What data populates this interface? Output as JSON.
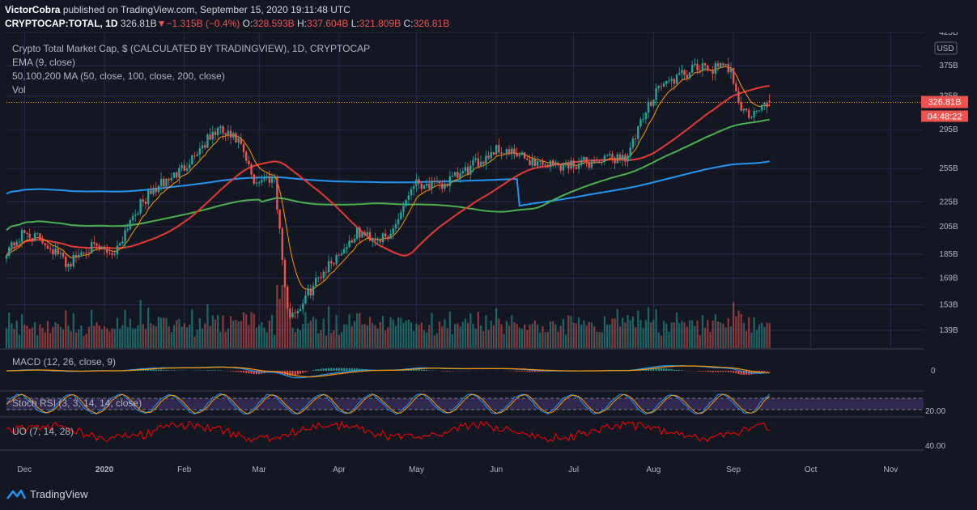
{
  "header": {
    "author": "VictorCobra",
    "published_text": "published on TradingView.com, September 15, 2020 19:11:48 UTC",
    "symbol": "CRYPTOCAP:TOTAL, 1D",
    "last": "326.81B",
    "change": "−1.315B (−0.4%)",
    "open_label": "O:",
    "open": "328.593B",
    "high_label": "H:",
    "high": "337.604B",
    "low_label": "L:",
    "low": "321.809B",
    "close_label": "C:",
    "close": "326.81B"
  },
  "legend": {
    "title": "Crypto Total Market Cap, $ (CALCULATED BY TRADINGVIEW), 1D, CRYPTOCAP",
    "ema": "EMA (9, close)",
    "ma": "50,100,200 MA (50, close, 100, close, 200, close)",
    "vol": "Vol",
    "macd": "MACD (12, 26, close, 9)",
    "stoch": "Stoch RSI (3, 3, 14, 14, close)",
    "uo": "UO (7, 14, 28)"
  },
  "price_axis": {
    "currency": "USD",
    "labels": [
      "425B",
      "375B",
      "335B",
      "295B",
      "255B",
      "225B",
      "205B",
      "185B",
      "169B",
      "153B",
      "139B"
    ],
    "last_price_tag": "326.81B",
    "countdown_tag": "04:48:22"
  },
  "macd_axis": {
    "labels": [
      "0"
    ]
  },
  "stoch_axis": {
    "labels": [
      "20.00"
    ]
  },
  "uo_axis": {
    "labels": [
      "40.00"
    ]
  },
  "time_axis": {
    "labels": [
      "Dec",
      "2020",
      "Feb",
      "Mar",
      "Apr",
      "May",
      "Jun",
      "Jul",
      "Aug",
      "Sep",
      "Oct",
      "Nov"
    ]
  },
  "footer": {
    "brand": "TradingView"
  },
  "colors": {
    "background": "#131722",
    "up": "#26a69a",
    "down": "#ef5350",
    "ema": "#ff9800",
    "ma50": "#e53935",
    "ma100": "#4caf50",
    "ma200": "#2196f3",
    "macd": "#2196f3",
    "signal": "#ff9800",
    "stoch_k": "#2196f3",
    "stoch_d": "#ff9800",
    "uo": "#ff0000",
    "stoch_band": "#7e57c2",
    "grid": "#3a2a5a"
  },
  "chart_data": {
    "type": "candlestick",
    "title": "Crypto Total Market Cap, $ (CALCULATED BY TRADINGVIEW), 1D, CRYPTOCAP",
    "interval": "1D",
    "unit": "USD billions",
    "y_scale": "log",
    "ylim": [
      130,
      425
    ],
    "x_range": [
      "2019-11-24",
      "2020-11-15"
    ],
    "last_bar_date": "2020-09-15",
    "anchors": [
      {
        "date": "2019-11-24",
        "close": 188
      },
      {
        "date": "2019-12-01",
        "close": 200
      },
      {
        "date": "2019-12-08",
        "close": 195
      },
      {
        "date": "2019-12-18",
        "close": 178
      },
      {
        "date": "2019-12-25",
        "close": 190
      },
      {
        "date": "2020-01-05",
        "close": 186
      },
      {
        "date": "2020-01-12",
        "close": 215
      },
      {
        "date": "2020-01-20",
        "close": 235
      },
      {
        "date": "2020-01-30",
        "close": 252
      },
      {
        "date": "2020-02-08",
        "close": 278
      },
      {
        "date": "2020-02-14",
        "close": 295
      },
      {
        "date": "2020-02-22",
        "close": 282
      },
      {
        "date": "2020-02-28",
        "close": 243
      },
      {
        "date": "2020-03-07",
        "close": 248
      },
      {
        "date": "2020-03-12",
        "close": 148
      },
      {
        "date": "2020-03-16",
        "close": 150
      },
      {
        "date": "2020-03-25",
        "close": 172
      },
      {
        "date": "2020-04-08",
        "close": 200
      },
      {
        "date": "2020-04-20",
        "close": 195
      },
      {
        "date": "2020-04-30",
        "close": 243
      },
      {
        "date": "2020-05-10",
        "close": 238
      },
      {
        "date": "2020-05-20",
        "close": 252
      },
      {
        "date": "2020-06-01",
        "close": 275
      },
      {
        "date": "2020-06-15",
        "close": 262
      },
      {
        "date": "2020-06-25",
        "close": 258
      },
      {
        "date": "2020-07-10",
        "close": 262
      },
      {
        "date": "2020-07-22",
        "close": 268
      },
      {
        "date": "2020-08-02",
        "close": 345
      },
      {
        "date": "2020-08-17",
        "close": 370
      },
      {
        "date": "2020-08-31",
        "close": 372
      },
      {
        "date": "2020-09-04",
        "close": 318
      },
      {
        "date": "2020-09-08",
        "close": 310
      },
      {
        "date": "2020-09-15",
        "close": 326.81
      }
    ],
    "last_ohlc": {
      "open": 328.593,
      "high": 337.604,
      "low": 321.809,
      "close": 326.81
    },
    "moving_averages_end": {
      "ema9": 323,
      "ma50": 332,
      "ma100": 300,
      "ma200": 262
    },
    "indicators": [
      "EMA (9, close)",
      "MA 50",
      "MA 100",
      "MA 200",
      "Vol",
      "MACD (12, 26, close, 9)",
      "Stoch RSI (3, 3, 14, 14, close)",
      "UO (7, 14, 28)"
    ]
  }
}
